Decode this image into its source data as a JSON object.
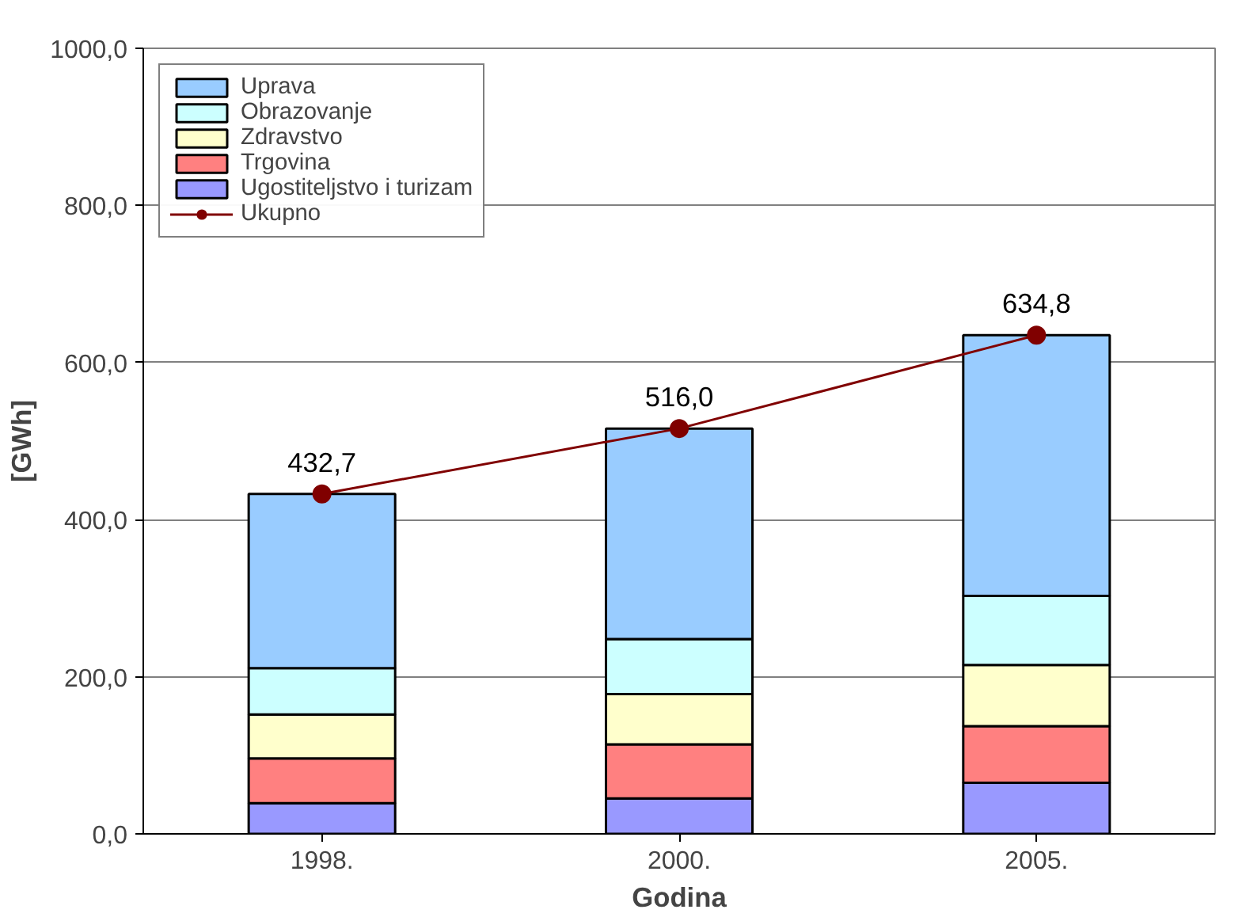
{
  "chart_data": {
    "type": "bar",
    "stacked": true,
    "xlabel": "Godina",
    "ylabel": "[GWh]",
    "categories": [
      "1998.",
      "2000.",
      "2005."
    ],
    "series": [
      {
        "name": "Ugostiteljstvo i turizam",
        "color": "#9999ff",
        "values": [
          39,
          45,
          65
        ]
      },
      {
        "name": "Trgovina",
        "color": "#ff8080",
        "values": [
          57,
          69,
          72
        ]
      },
      {
        "name": "Zdravstvo",
        "color": "#ffffcc",
        "values": [
          56,
          64,
          78
        ]
      },
      {
        "name": "Obrazovanje",
        "color": "#ccffff",
        "values": [
          59,
          70,
          88
        ]
      },
      {
        "name": "Uprava",
        "color": "#99ccff",
        "values": [
          221.7,
          268,
          331.8
        ]
      },
      {
        "name": "Ukupno",
        "type": "line",
        "color": "#800000",
        "values": [
          432.7,
          516.0,
          634.8
        ],
        "value_labels": [
          "432,7",
          "516,0",
          "634,8"
        ]
      }
    ],
    "ylim": [
      0,
      1000
    ],
    "yticks": [
      {
        "value": 0,
        "label": "0,0"
      },
      {
        "value": 200,
        "label": "200,0"
      },
      {
        "value": 400,
        "label": "400,0"
      },
      {
        "value": 600,
        "label": "600,0"
      },
      {
        "value": 800,
        "label": "800,0"
      },
      {
        "value": 1000,
        "label": "1000,0"
      }
    ],
    "grid": "y",
    "legend": "top left",
    "marker": "circle"
  }
}
